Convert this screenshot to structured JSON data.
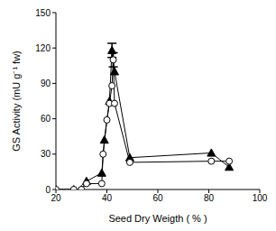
{
  "chart_data": {
    "type": "line",
    "x_label": "Seed Dry Weigth ( % )",
    "y_label": "GS Activity (mU g⁻¹ fw)",
    "xlim": [
      20,
      100
    ],
    "xticks": [
      20,
      40,
      60,
      80,
      100
    ],
    "ylim": [
      0,
      150
    ],
    "yticks": [
      0,
      30,
      60,
      90,
      120,
      150
    ],
    "grid": false,
    "series": [
      {
        "color": "#000000",
        "marker": "triangle",
        "line_style": "solid",
        "x": [
          20,
          27,
          30,
          32,
          38,
          39,
          41,
          42,
          43,
          49,
          81,
          88
        ],
        "values": [
          0,
          0,
          0,
          7,
          14,
          42,
          75,
          118,
          100,
          27,
          31,
          19
        ],
        "errors": [
          null,
          null,
          null,
          null,
          null,
          null,
          null,
          6,
          null,
          null,
          null,
          null
        ]
      },
      {
        "color": "#000000",
        "marker": "open_circle",
        "line_style": "solid",
        "x": [
          20,
          27,
          30,
          32,
          38,
          38.5,
          40,
          41,
          42,
          42.5,
          43,
          49,
          81,
          88
        ],
        "values": [
          0,
          0,
          0,
          5,
          5,
          30,
          59,
          73,
          88,
          110,
          73,
          23,
          24,
          24
        ],
        "errors": [
          null,
          null,
          null,
          null,
          null,
          null,
          null,
          null,
          null,
          6,
          null,
          null,
          null,
          null
        ]
      }
    ]
  }
}
